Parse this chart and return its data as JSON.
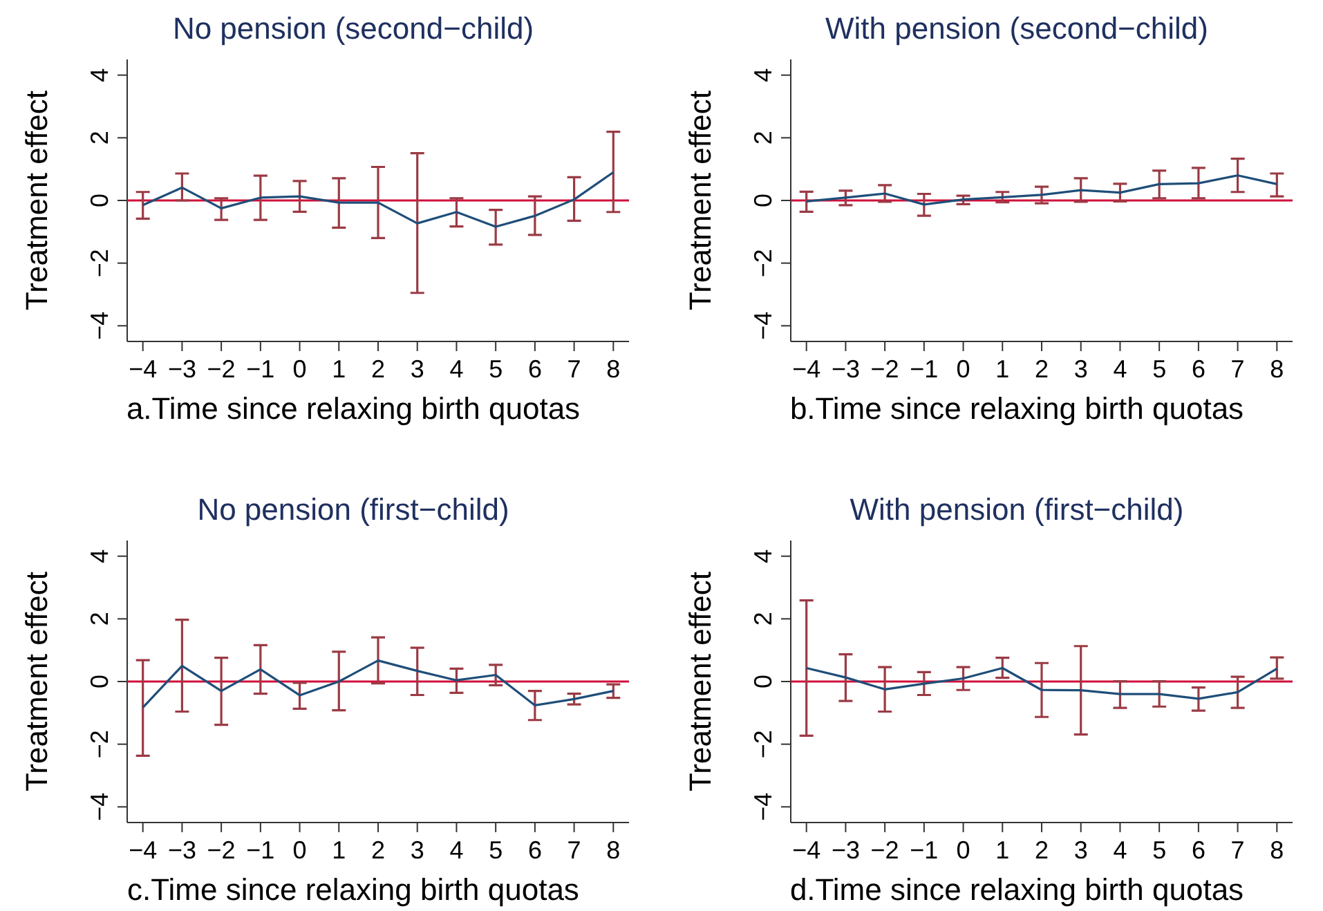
{
  "chart_data": [
    {
      "type": "line",
      "title": "No pension (second−child)",
      "xlabel": "a.Time since relaxing birth quotas",
      "ylabel": "Treatment effect",
      "x": [
        -4,
        -3,
        -2,
        -1,
        0,
        1,
        2,
        3,
        4,
        5,
        6,
        7,
        8
      ],
      "xlim": [
        -4.4,
        8.4
      ],
      "ylim": [
        -4.5,
        4.5
      ],
      "xticks": [
        -4,
        -3,
        -2,
        -1,
        0,
        1,
        2,
        3,
        4,
        5,
        6,
        7,
        8
      ],
      "yticks": [
        -4,
        -2,
        0,
        2,
        4
      ],
      "line_style": "solid",
      "grid": false,
      "series": [
        {
          "color": "#1f4e79",
          "values": [
            -0.15,
            0.41,
            -0.25,
            0.09,
            0.13,
            -0.07,
            -0.07,
            -0.73,
            -0.37,
            -0.84,
            -0.49,
            0.03,
            0.9
          ],
          "errors": [
            [
              -0.58,
              0.27
            ],
            [
              0,
              0.86
            ],
            [
              -0.62,
              0.07
            ],
            [
              -0.62,
              0.79
            ],
            [
              -0.36,
              0.62
            ],
            [
              -0.87,
              0.71
            ],
            [
              -1.2,
              1.07
            ],
            [
              -2.95,
              1.51
            ],
            [
              -0.83,
              0.07
            ],
            [
              -1.41,
              -0.3
            ],
            [
              -1.1,
              0.13
            ],
            [
              -0.65,
              0.74
            ],
            [
              -0.37,
              2.19
            ]
          ]
        }
      ],
      "ref_lines": [
        {
          "axis": "y",
          "value": 0,
          "color": "#d0103a"
        }
      ]
    },
    {
      "type": "line",
      "title": "With pension (second−child)",
      "xlabel": "b.Time since relaxing birth quotas",
      "ylabel": "Treatment effect",
      "x": [
        -4,
        -3,
        -2,
        -1,
        0,
        1,
        2,
        3,
        4,
        5,
        6,
        7,
        8
      ],
      "xlim": [
        -4.4,
        8.4
      ],
      "ylim": [
        -4.5,
        4.5
      ],
      "xticks": [
        -4,
        -3,
        -2,
        -1,
        0,
        1,
        2,
        3,
        4,
        5,
        6,
        7,
        8
      ],
      "yticks": [
        -4,
        -2,
        0,
        2,
        4
      ],
      "line_style": "solid",
      "grid": false,
      "series": [
        {
          "color": "#1f4e79",
          "values": [
            -0.03,
            0.09,
            0.22,
            -0.13,
            0.03,
            0.1,
            0.18,
            0.33,
            0.25,
            0.52,
            0.55,
            0.8,
            0.52
          ],
          "errors": [
            [
              -0.36,
              0.28
            ],
            [
              -0.15,
              0.31
            ],
            [
              -0.04,
              0.49
            ],
            [
              -0.49,
              0.21
            ],
            [
              -0.12,
              0.15
            ],
            [
              -0.06,
              0.27
            ],
            [
              -0.09,
              0.44
            ],
            [
              -0.04,
              0.71
            ],
            [
              -0.03,
              0.53
            ],
            [
              0.07,
              0.95
            ],
            [
              0.07,
              1.04
            ],
            [
              0.27,
              1.33
            ],
            [
              0.13,
              0.86
            ]
          ]
        }
      ],
      "ref_lines": [
        {
          "axis": "y",
          "value": 0,
          "color": "#d0103a"
        }
      ]
    },
    {
      "type": "line",
      "title": "No pension (first−child)",
      "xlabel": "c.Time since relaxing birth quotas",
      "ylabel": "Treatment effect",
      "x": [
        -4,
        -3,
        -2,
        -1,
        0,
        1,
        2,
        3,
        4,
        5,
        6,
        7,
        8
      ],
      "xlim": [
        -4.4,
        8.4
      ],
      "ylim": [
        -4.5,
        4.5
      ],
      "xticks": [
        -4,
        -3,
        -2,
        -1,
        0,
        1,
        2,
        3,
        4,
        5,
        6,
        7,
        8
      ],
      "yticks": [
        -4,
        -2,
        0,
        2,
        4
      ],
      "line_style": "solid",
      "grid": false,
      "series": [
        {
          "color": "#1f4e79",
          "values": [
            -0.83,
            0.5,
            -0.3,
            0.39,
            -0.44,
            0,
            0.67,
            0.34,
            0.04,
            0.21,
            -0.76,
            -0.56,
            -0.3
          ],
          "errors": [
            [
              -2.37,
              0.68
            ],
            [
              -0.96,
              1.97
            ],
            [
              -1.38,
              0.76
            ],
            [
              -0.39,
              1.16
            ],
            [
              -0.87,
              -0.04
            ],
            [
              -0.92,
              0.95
            ],
            [
              -0.06,
              1.41
            ],
            [
              -0.43,
              1.08
            ],
            [
              -0.36,
              0.41
            ],
            [
              -0.12,
              0.53
            ],
            [
              -1.23,
              -0.3
            ],
            [
              -0.73,
              -0.39
            ],
            [
              -0.52,
              -0.09
            ]
          ]
        }
      ],
      "ref_lines": [
        {
          "axis": "y",
          "value": 0,
          "color": "#d0103a"
        }
      ]
    },
    {
      "type": "line",
      "title": "With pension (first−child)",
      "xlabel": "d.Time since relaxing birth quotas",
      "ylabel": "Treatment effect",
      "x": [
        -4,
        -3,
        -2,
        -1,
        0,
        1,
        2,
        3,
        4,
        5,
        6,
        7,
        8
      ],
      "xlim": [
        -4.4,
        8.4
      ],
      "ylim": [
        -4.5,
        4.5
      ],
      "xticks": [
        -4,
        -3,
        -2,
        -1,
        0,
        1,
        2,
        3,
        4,
        5,
        6,
        7,
        8
      ],
      "yticks": [
        -4,
        -2,
        0,
        2,
        4
      ],
      "line_style": "solid",
      "grid": false,
      "series": [
        {
          "color": "#1f4e79",
          "values": [
            0.43,
            0.13,
            -0.25,
            -0.07,
            0.1,
            0.43,
            -0.27,
            -0.28,
            -0.4,
            -0.4,
            -0.55,
            -0.34,
            0.41
          ],
          "errors": [
            [
              -1.73,
              2.59
            ],
            [
              -0.62,
              0.87
            ],
            [
              -0.96,
              0.46
            ],
            [
              -0.43,
              0.3
            ],
            [
              -0.27,
              0.46
            ],
            [
              0.12,
              0.76
            ],
            [
              -1.13,
              0.59
            ],
            [
              -1.69,
              1.13
            ],
            [
              -0.84,
              0.01
            ],
            [
              -0.8,
              0.01
            ],
            [
              -0.93,
              -0.19
            ],
            [
              -0.84,
              0.15
            ],
            [
              0.09,
              0.77
            ]
          ]
        }
      ],
      "ref_lines": [
        {
          "axis": "y",
          "value": 0,
          "color": "#d0103a"
        }
      ]
    }
  ]
}
